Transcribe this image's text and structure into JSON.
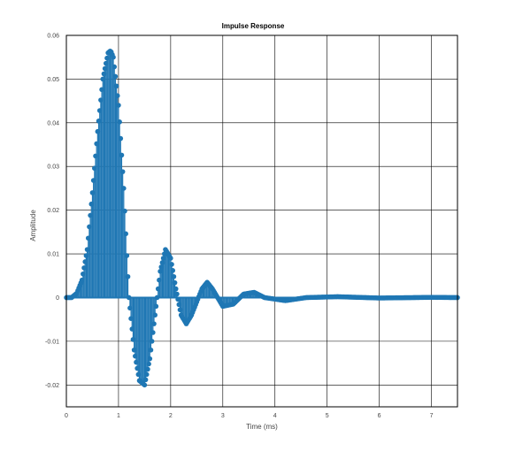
{
  "chart_data": {
    "type": "stem",
    "title": "Impulse Response",
    "xlabel": "Time (ms)",
    "ylabel": "Amplitude",
    "xlim": [
      0,
      7.5
    ],
    "ylim": [
      -0.025,
      0.06
    ],
    "grid": true,
    "x_ticks": [
      "0",
      "1",
      "2",
      "3",
      "4",
      "5",
      "6",
      "7"
    ],
    "y_ticks": [
      "-0.02",
      "-0.01",
      "0",
      "0.01",
      "0.02",
      "0.03",
      "0.04",
      "0.05",
      "0.06"
    ],
    "series": [
      {
        "color": "#1f77b4",
        "x": [
          0,
          0.1,
          0.2,
          0.3,
          0.4,
          0.5,
          0.6,
          0.7,
          0.8,
          0.85,
          0.9,
          1.0,
          1.1,
          1.15,
          1.2,
          1.3,
          1.4,
          1.5,
          1.6,
          1.7,
          1.8,
          1.9,
          2.0,
          2.1,
          2.2,
          2.3,
          2.4,
          2.6,
          2.7,
          2.8,
          3.0,
          3.2,
          3.4,
          3.6,
          3.8,
          4.2,
          4.6,
          5.2,
          6.0,
          7.0,
          7.5
        ],
        "y": [
          0,
          0,
          0.001,
          0.004,
          0.011,
          0.024,
          0.038,
          0.05,
          0.056,
          0.0565,
          0.055,
          0.044,
          0.025,
          0.012,
          0.0,
          -0.012,
          -0.019,
          -0.02,
          -0.014,
          -0.004,
          0.006,
          0.011,
          0.009,
          0.002,
          -0.004,
          -0.006,
          -0.004,
          0.002,
          0.0035,
          0.002,
          -0.002,
          -0.0015,
          0.0008,
          0.0012,
          0.0,
          -0.0007,
          0.0,
          0.0002,
          -0.0001,
          5e-05,
          0
        ]
      }
    ]
  }
}
